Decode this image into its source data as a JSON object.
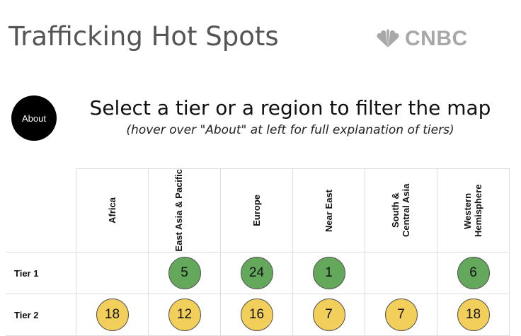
{
  "header": {
    "title": "Trafficking Hot Spots",
    "brand_name": "CNBC"
  },
  "about_label": "About",
  "instructions": {
    "main": "Select a tier or a region to filter the map",
    "sub": "(hover over \"About\" at left for full explanation of tiers)"
  },
  "table": {
    "regions": [
      "Africa",
      "East Asia & Pacific",
      "Europe",
      "Near East",
      "South & Central Asia",
      "Western Hemisphere"
    ],
    "rows": [
      {
        "label": "Tier 1",
        "color": "#64a85c",
        "counts": [
          null,
          "5",
          "24",
          "1",
          null,
          "6"
        ]
      },
      {
        "label": "Tier 2",
        "color": "#f2cf5b",
        "counts": [
          "18",
          "12",
          "16",
          "7",
          "7",
          "18"
        ]
      }
    ]
  },
  "colors": {
    "tier1": "#64a85c",
    "tier2": "#f2cf5b",
    "title_gray": "#555555",
    "brand_gray": "#a8a8a8"
  }
}
